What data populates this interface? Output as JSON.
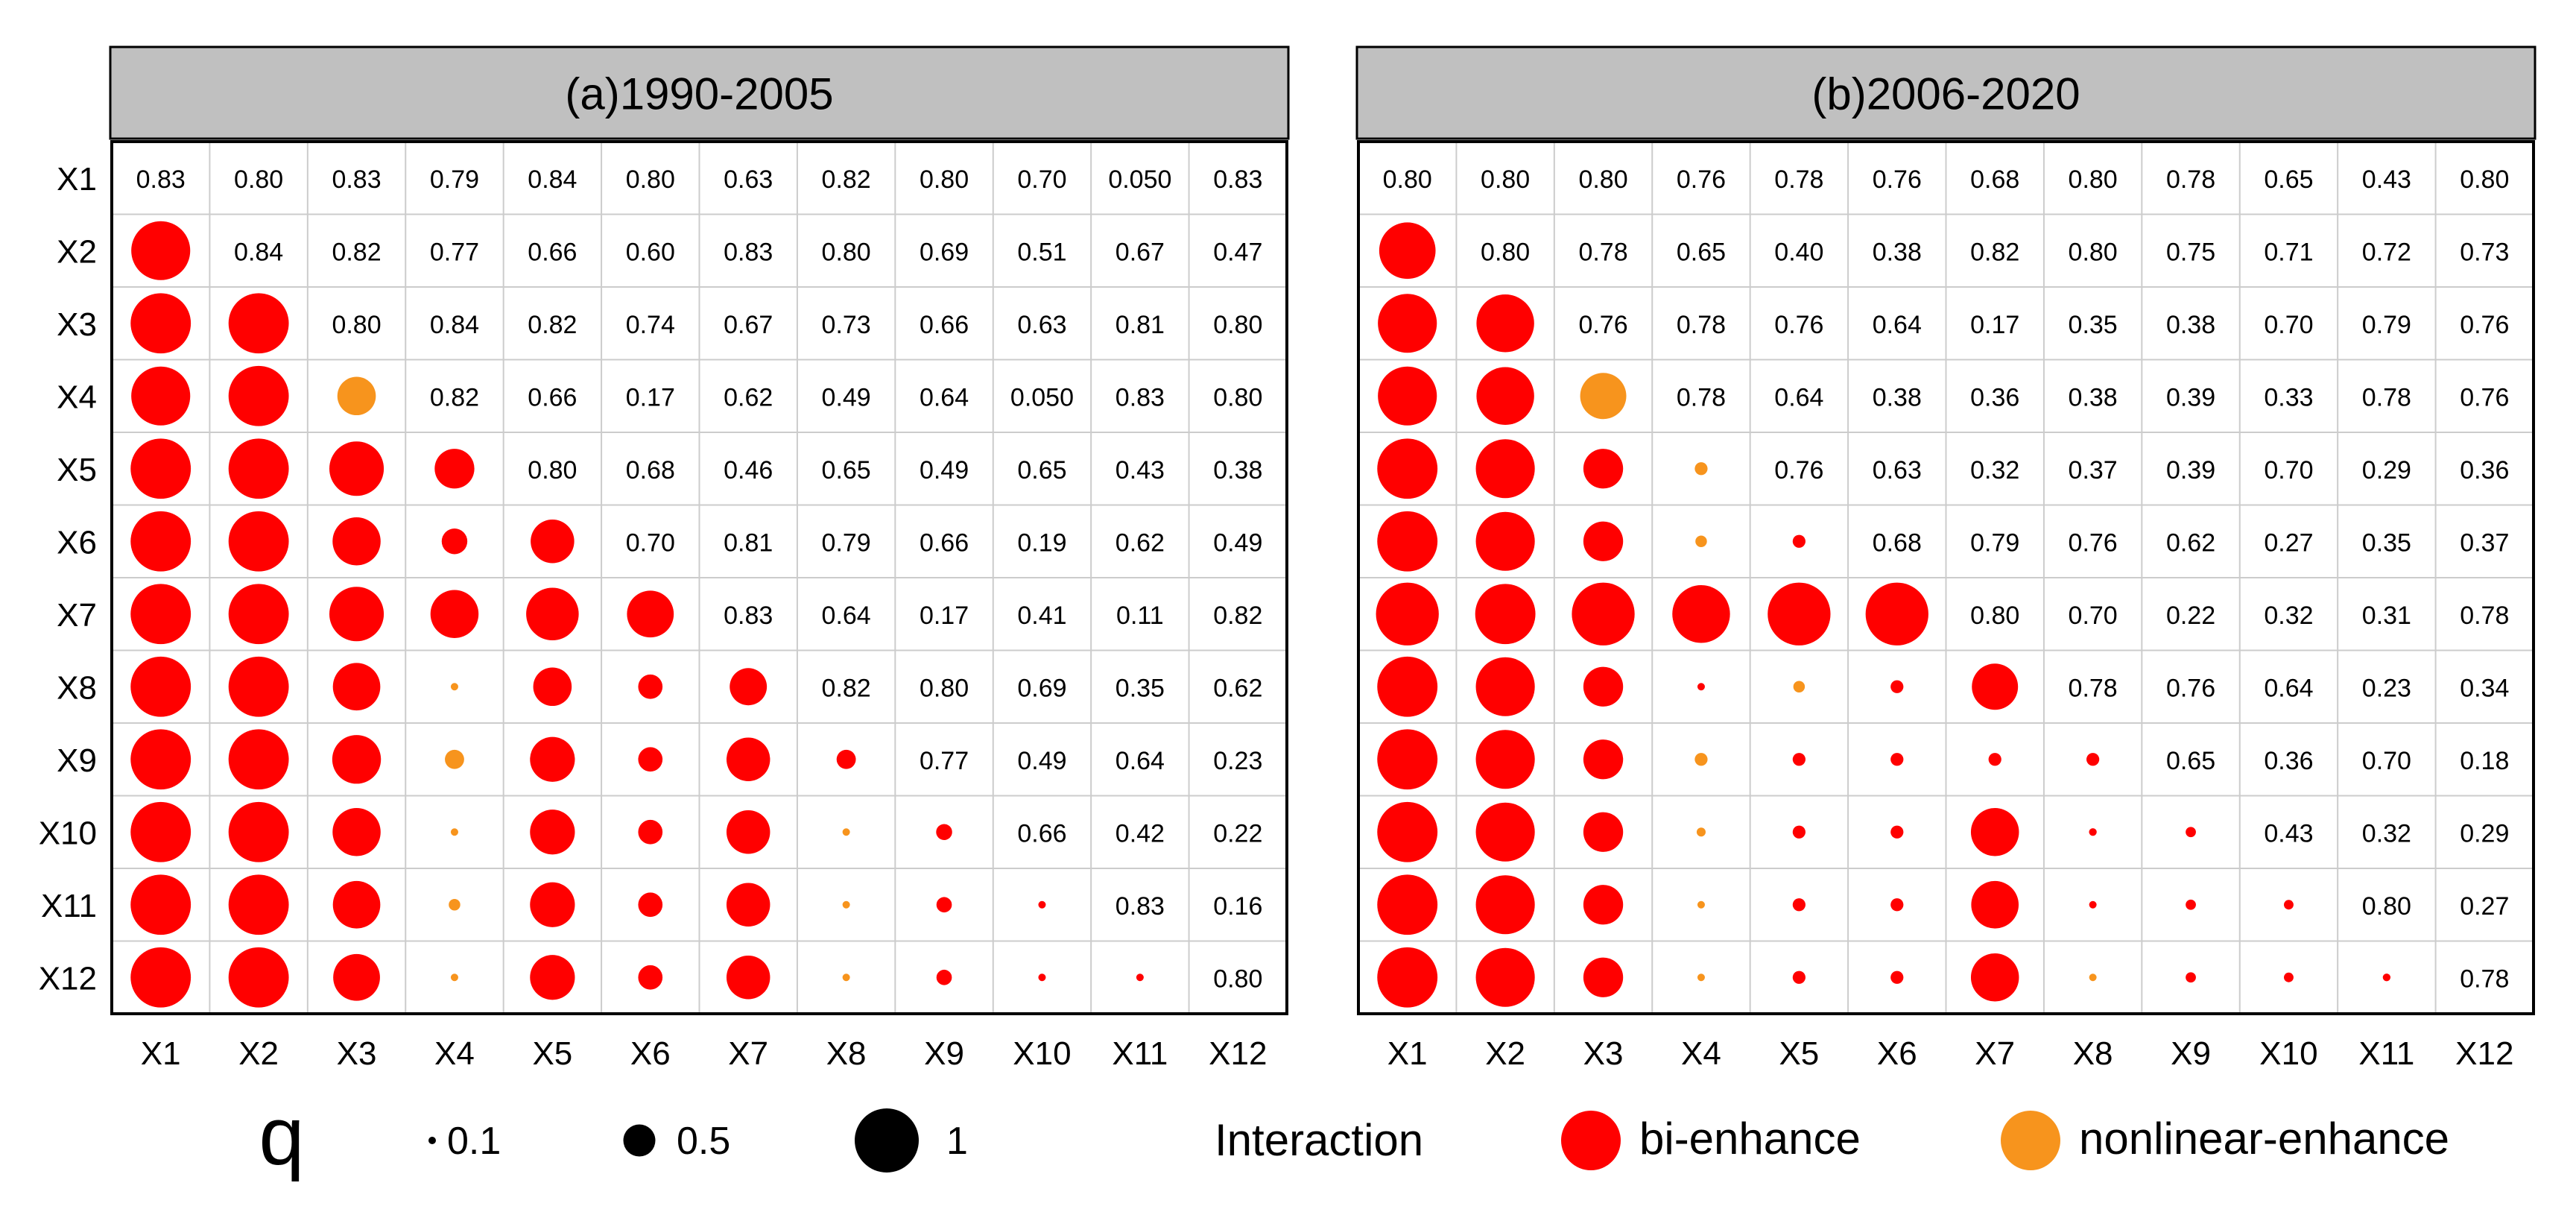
{
  "colors": {
    "bi_enhance": "#ff0000",
    "nonlinear_enhance": "#f7941d",
    "header_bg": "#c0c0c0",
    "grid": "#cccccc"
  },
  "legend": {
    "size_title": "q",
    "size_items": [
      {
        "q": 0.1,
        "label": "0.1"
      },
      {
        "q": 0.5,
        "label": "0.5"
      },
      {
        "q": 1,
        "label": "1"
      }
    ],
    "color_title": "Interaction",
    "color_items": [
      {
        "type": "bi",
        "label": "bi-enhance"
      },
      {
        "type": "nonlinear",
        "label": "nonlinear-enhance"
      }
    ]
  },
  "chart_data": [
    {
      "type": "heatmap",
      "title": "(a)1990-2005",
      "x_labels": [
        "X1",
        "X2",
        "X3",
        "X4",
        "X5",
        "X6",
        "X7",
        "X8",
        "X9",
        "X10",
        "X11",
        "X12"
      ],
      "y_labels": [
        "X1",
        "X2",
        "X3",
        "X4",
        "X5",
        "X6",
        "X7",
        "X8",
        "X9",
        "X10",
        "X11",
        "X12"
      ],
      "upper_values": [
        [
          "0.83",
          "0.80",
          "0.83",
          "0.79",
          "0.84",
          "0.80",
          "0.63",
          "0.82",
          "0.80",
          "0.70",
          "0.050",
          "0.83"
        ],
        [
          "0.84",
          "0.82",
          "0.77",
          "0.66",
          "0.60",
          "0.83",
          "0.80",
          "0.69",
          "0.51",
          "0.67",
          "0.47"
        ],
        [
          "0.80",
          "0.84",
          "0.82",
          "0.74",
          "0.67",
          "0.73",
          "0.66",
          "0.63",
          "0.81",
          "0.80"
        ],
        [
          "0.82",
          "0.66",
          "0.17",
          "0.62",
          "0.49",
          "0.64",
          "0.050",
          "0.83",
          "0.80"
        ],
        [
          "0.80",
          "0.68",
          "0.46",
          "0.65",
          "0.49",
          "0.65",
          "0.43",
          "0.38"
        ],
        [
          "0.70",
          "0.81",
          "0.79",
          "0.66",
          "0.19",
          "0.62",
          "0.49"
        ],
        [
          "0.83",
          "0.64",
          "0.17",
          "0.41",
          "0.11",
          "0.82"
        ],
        [
          "0.82",
          "0.80",
          "0.69",
          "0.35",
          "0.62"
        ],
        [
          "0.77",
          "0.49",
          "0.64",
          "0.23"
        ],
        [
          "0.66",
          "0.42",
          "0.22"
        ],
        [
          "0.83",
          "0.16"
        ],
        [
          "0.80"
        ]
      ],
      "lower_q": [
        [
          0.92
        ],
        [
          0.94,
          0.94
        ],
        [
          0.92,
          0.94,
          0.6
        ],
        [
          0.94,
          0.94,
          0.85,
          0.62
        ],
        [
          0.94,
          0.94,
          0.75,
          0.4,
          0.68
        ],
        [
          0.94,
          0.94,
          0.85,
          0.75,
          0.82,
          0.73
        ],
        [
          0.94,
          0.94,
          0.74,
          0.03,
          0.6,
          0.38,
          0.58
        ],
        [
          0.94,
          0.94,
          0.76,
          0.3,
          0.7,
          0.38,
          0.68,
          0.3
        ],
        [
          0.94,
          0.94,
          0.75,
          0.03,
          0.7,
          0.38,
          0.68,
          0.03,
          0.25
        ],
        [
          0.94,
          0.94,
          0.74,
          0.18,
          0.7,
          0.38,
          0.68,
          0.03,
          0.24,
          0.08
        ],
        [
          0.94,
          0.94,
          0.73,
          0.03,
          0.7,
          0.38,
          0.68,
          0.03,
          0.24,
          0.08,
          0.1
        ]
      ],
      "lower_type": [
        [
          "bi"
        ],
        [
          "bi",
          "bi"
        ],
        [
          "bi",
          "bi",
          "nonlinear"
        ],
        [
          "bi",
          "bi",
          "bi",
          "bi"
        ],
        [
          "bi",
          "bi",
          "bi",
          "bi",
          "bi"
        ],
        [
          "bi",
          "bi",
          "bi",
          "bi",
          "bi",
          "bi"
        ],
        [
          "bi",
          "bi",
          "bi",
          "nonlinear",
          "bi",
          "bi",
          "bi"
        ],
        [
          "bi",
          "bi",
          "bi",
          "nonlinear",
          "bi",
          "bi",
          "bi",
          "bi"
        ],
        [
          "bi",
          "bi",
          "bi",
          "nonlinear",
          "bi",
          "bi",
          "bi",
          "nonlinear",
          "bi"
        ],
        [
          "bi",
          "bi",
          "bi",
          "nonlinear",
          "bi",
          "bi",
          "bi",
          "nonlinear",
          "bi",
          "bi"
        ],
        [
          "bi",
          "bi",
          "bi",
          "nonlinear",
          "bi",
          "bi",
          "bi",
          "nonlinear",
          "bi",
          "bi",
          "bi"
        ]
      ]
    },
    {
      "type": "heatmap",
      "title": "(b)2006-2020",
      "x_labels": [
        "X1",
        "X2",
        "X3",
        "X4",
        "X5",
        "X6",
        "X7",
        "X8",
        "X9",
        "X10",
        "X11",
        "X12"
      ],
      "y_labels": [
        "X1",
        "X2",
        "X3",
        "X4",
        "X5",
        "X6",
        "X7",
        "X8",
        "X9",
        "X10",
        "X11",
        "X12"
      ],
      "upper_values": [
        [
          "0.80",
          "0.80",
          "0.80",
          "0.76",
          "0.78",
          "0.76",
          "0.68",
          "0.80",
          "0.78",
          "0.65",
          "0.43",
          "0.80"
        ],
        [
          "0.80",
          "0.78",
          "0.65",
          "0.40",
          "0.38",
          "0.82",
          "0.80",
          "0.75",
          "0.71",
          "0.72",
          "0.73"
        ],
        [
          "0.76",
          "0.78",
          "0.76",
          "0.64",
          "0.17",
          "0.35",
          "0.38",
          "0.70",
          "0.79",
          "0.76"
        ],
        [
          "0.78",
          "0.64",
          "0.38",
          "0.36",
          "0.38",
          "0.39",
          "0.33",
          "0.78",
          "0.76"
        ],
        [
          "0.76",
          "0.63",
          "0.32",
          "0.37",
          "0.39",
          "0.70",
          "0.29",
          "0.36"
        ],
        [
          "0.68",
          "0.79",
          "0.76",
          "0.62",
          "0.27",
          "0.35",
          "0.37"
        ],
        [
          "0.80",
          "0.70",
          "0.22",
          "0.32",
          "0.31",
          "0.78"
        ],
        [
          "0.78",
          "0.76",
          "0.64",
          "0.23",
          "0.34"
        ],
        [
          "0.65",
          "0.36",
          "0.70",
          "0.18"
        ],
        [
          "0.43",
          "0.32",
          "0.29"
        ],
        [
          "0.80",
          "0.27"
        ],
        [
          "0.78"
        ]
      ],
      "lower_q": [
        [
          0.88
        ],
        [
          0.92,
          0.9
        ],
        [
          0.92,
          0.9,
          0.72
        ],
        [
          0.94,
          0.92,
          0.62,
          0.2
        ],
        [
          0.94,
          0.92,
          0.62,
          0.18,
          0.2
        ],
        [
          0.98,
          0.94,
          0.98,
          0.9,
          0.98,
          0.98
        ],
        [
          0.94,
          0.92,
          0.62,
          0.03,
          0.18,
          0.2,
          0.72
        ],
        [
          0.94,
          0.92,
          0.62,
          0.2,
          0.2,
          0.2,
          0.2,
          0.2
        ],
        [
          0.94,
          0.92,
          0.62,
          0.14,
          0.2,
          0.2,
          0.75,
          0.12,
          0.16
        ],
        [
          0.94,
          0.92,
          0.62,
          0.1,
          0.2,
          0.2,
          0.74,
          0.08,
          0.16,
          0.15
        ],
        [
          0.94,
          0.92,
          0.62,
          0.08,
          0.2,
          0.2,
          0.75,
          0.03,
          0.16,
          0.15,
          0.12
        ]
      ],
      "lower_type": [
        [
          "bi"
        ],
        [
          "bi",
          "bi"
        ],
        [
          "bi",
          "bi",
          "nonlinear"
        ],
        [
          "bi",
          "bi",
          "bi",
          "nonlinear"
        ],
        [
          "bi",
          "bi",
          "bi",
          "nonlinear",
          "bi"
        ],
        [
          "bi",
          "bi",
          "bi",
          "bi",
          "bi",
          "bi"
        ],
        [
          "bi",
          "bi",
          "bi",
          "bi",
          "nonlinear",
          "bi",
          "bi"
        ],
        [
          "bi",
          "bi",
          "bi",
          "nonlinear",
          "bi",
          "bi",
          "bi",
          "bi"
        ],
        [
          "bi",
          "bi",
          "bi",
          "nonlinear",
          "bi",
          "bi",
          "bi",
          "bi",
          "bi"
        ],
        [
          "bi",
          "bi",
          "bi",
          "nonlinear",
          "bi",
          "bi",
          "bi",
          "bi",
          "bi",
          "bi"
        ],
        [
          "bi",
          "bi",
          "bi",
          "nonlinear",
          "bi",
          "bi",
          "bi",
          "nonlinear",
          "bi",
          "bi",
          "bi"
        ]
      ]
    }
  ]
}
